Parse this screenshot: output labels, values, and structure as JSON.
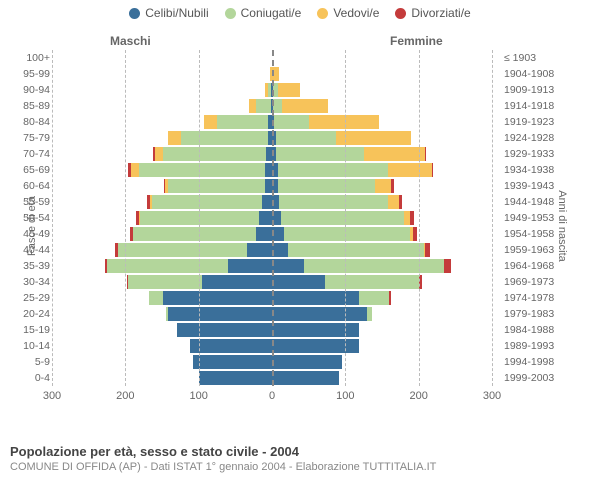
{
  "legend": {
    "items": [
      {
        "label": "Celibi/Nubili",
        "color": "#3a6f9a"
      },
      {
        "label": "Coniugati/e",
        "color": "#b3d69b"
      },
      {
        "label": "Vedovi/e",
        "color": "#f7c35a"
      },
      {
        "label": "Divorziati/e",
        "color": "#c43b3b"
      }
    ]
  },
  "gender": {
    "male": "Maschi",
    "female": "Femmine"
  },
  "axis": {
    "left_title": "Fasce di età",
    "right_title": "Anni di nascita",
    "xmax": 300,
    "xticks": [
      300,
      200,
      100,
      0,
      100,
      200,
      300
    ]
  },
  "footer": {
    "title": "Popolazione per età, sesso e stato civile - 2004",
    "subtitle": "COMUNE DI OFFIDA (AP) - Dati ISTAT 1° gennaio 2004 - Elaborazione TUTTITALIA.IT"
  },
  "colors": {
    "base": "#3a6f9a",
    "conj": "#b3d69b",
    "wid": "#f7c35a",
    "div": "#c43b3b",
    "grid": "#bbbbbb",
    "text": "#666666"
  },
  "bands": [
    {
      "age": "100+",
      "birth": "≤ 1903",
      "m": [
        0,
        0,
        0,
        0
      ],
      "f": [
        0,
        0,
        0,
        0
      ]
    },
    {
      "age": "95-99",
      "birth": "1904-1908",
      "m": [
        0,
        0,
        3,
        0
      ],
      "f": [
        0,
        0,
        10,
        0
      ]
    },
    {
      "age": "90-94",
      "birth": "1909-1913",
      "m": [
        2,
        3,
        5,
        0
      ],
      "f": [
        2,
        6,
        30,
        0
      ]
    },
    {
      "age": "85-89",
      "birth": "1914-1918",
      "m": [
        2,
        20,
        10,
        0
      ],
      "f": [
        2,
        12,
        62,
        0
      ]
    },
    {
      "age": "80-84",
      "birth": "1919-1923",
      "m": [
        5,
        70,
        18,
        0
      ],
      "f": [
        3,
        48,
        95,
        0
      ]
    },
    {
      "age": "75-79",
      "birth": "1924-1928",
      "m": [
        6,
        118,
        18,
        0
      ],
      "f": [
        5,
        82,
        102,
        0
      ]
    },
    {
      "age": "70-74",
      "birth": "1929-1933",
      "m": [
        8,
        140,
        12,
        2
      ],
      "f": [
        6,
        120,
        82,
        2
      ]
    },
    {
      "age": "65-69",
      "birth": "1934-1938",
      "m": [
        10,
        172,
        10,
        4
      ],
      "f": [
        8,
        150,
        60,
        2
      ]
    },
    {
      "age": "60-64",
      "birth": "1939-1943",
      "m": [
        10,
        132,
        4,
        2
      ],
      "f": [
        8,
        132,
        22,
        4
      ]
    },
    {
      "age": "55-59",
      "birth": "1944-1948",
      "m": [
        14,
        150,
        2,
        4
      ],
      "f": [
        10,
        148,
        15,
        4
      ]
    },
    {
      "age": "50-54",
      "birth": "1949-1953",
      "m": [
        18,
        162,
        2,
        4
      ],
      "f": [
        12,
        168,
        8,
        6
      ]
    },
    {
      "age": "45-49",
      "birth": "1954-1958",
      "m": [
        22,
        168,
        0,
        4
      ],
      "f": [
        16,
        172,
        4,
        6
      ]
    },
    {
      "age": "40-44",
      "birth": "1959-1963",
      "m": [
        34,
        176,
        0,
        4
      ],
      "f": [
        22,
        185,
        2,
        6
      ]
    },
    {
      "age": "35-39",
      "birth": "1964-1968",
      "m": [
        60,
        165,
        0,
        3
      ],
      "f": [
        44,
        190,
        0,
        10
      ]
    },
    {
      "age": "30-34",
      "birth": "1969-1973",
      "m": [
        96,
        100,
        0,
        2
      ],
      "f": [
        72,
        128,
        0,
        4
      ]
    },
    {
      "age": "25-29",
      "birth": "1974-1978",
      "m": [
        148,
        20,
        0,
        0
      ],
      "f": [
        118,
        42,
        0,
        2
      ]
    },
    {
      "age": "20-24",
      "birth": "1979-1983",
      "m": [
        142,
        2,
        0,
        0
      ],
      "f": [
        130,
        6,
        0,
        0
      ]
    },
    {
      "age": "15-19",
      "birth": "1984-1988",
      "m": [
        130,
        0,
        0,
        0
      ],
      "f": [
        118,
        0,
        0,
        0
      ]
    },
    {
      "age": "10-14",
      "birth": "1989-1993",
      "m": [
        112,
        0,
        0,
        0
      ],
      "f": [
        118,
        0,
        0,
        0
      ]
    },
    {
      "age": "5-9",
      "birth": "1994-1998",
      "m": [
        108,
        0,
        0,
        0
      ],
      "f": [
        95,
        0,
        0,
        0
      ]
    },
    {
      "age": "0-4",
      "birth": "1999-2003",
      "m": [
        100,
        0,
        0,
        0
      ],
      "f": [
        92,
        0,
        0,
        0
      ]
    }
  ]
}
